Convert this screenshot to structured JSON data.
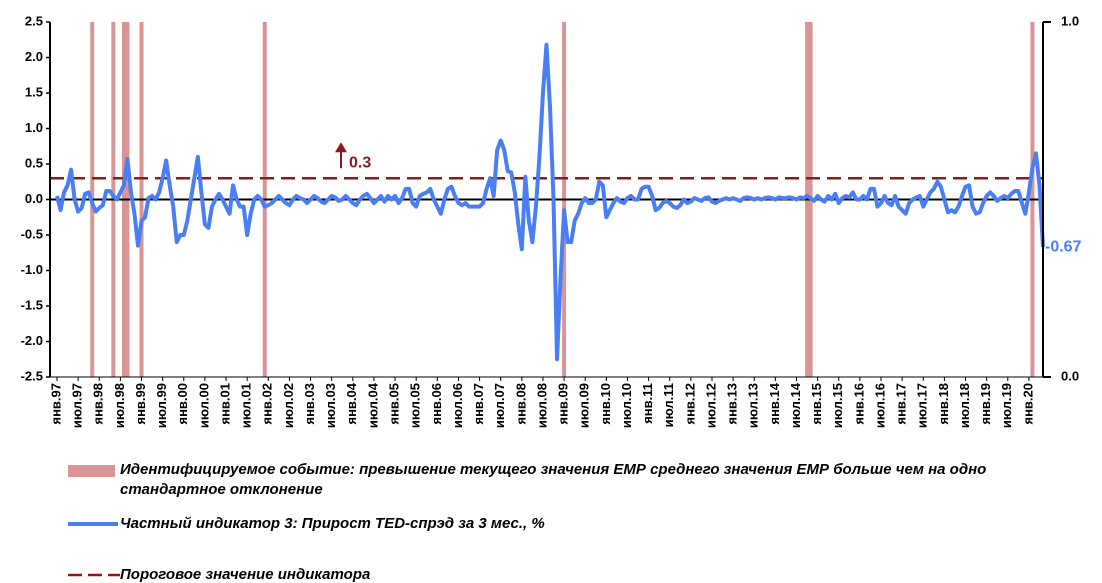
{
  "chart_data": {
    "type": "line",
    "ylim": [
      -2.5,
      2.5
    ],
    "yticks": [
      2.5,
      {
        "value": 2,
        "label": "2.0"
      },
      1.5,
      {
        "value": 1,
        "label": "1.0"
      },
      0.5,
      {
        "value": 0,
        "label": "0.0"
      },
      -0.5,
      {
        "value": -1,
        "label": "-1.0"
      },
      -1.5,
      {
        "value": -2,
        "label": "-2.0"
      },
      -2.5
    ],
    "y2lim": [
      0,
      1
    ],
    "y2ticks": [
      {
        "value": 1,
        "label": "1.0"
      },
      {
        "value": 0,
        "label": "0.0"
      }
    ],
    "categories": [
      "янв.97",
      null,
      null,
      null,
      null,
      null,
      "июл.97",
      null,
      null,
      null,
      null,
      null,
      "янв.98",
      null,
      null,
      null,
      null,
      null,
      "июл.98",
      null,
      null,
      null,
      null,
      null,
      "янв.99",
      null,
      null,
      null,
      null,
      null,
      "июл.99",
      null,
      null,
      null,
      null,
      null,
      "янв.00",
      null,
      null,
      null,
      null,
      null,
      "июл.00",
      null,
      null,
      null,
      null,
      null,
      "янв.01",
      null,
      null,
      null,
      null,
      null,
      "июл.01",
      null,
      null,
      null,
      null,
      null,
      "янв.02",
      null,
      null,
      null,
      null,
      null,
      "июл.02",
      null,
      null,
      null,
      null,
      null,
      "янв.03",
      null,
      null,
      null,
      null,
      null,
      "июл.03",
      null,
      null,
      null,
      null,
      null,
      "янв.04",
      null,
      null,
      null,
      null,
      null,
      "июл.04",
      null,
      null,
      null,
      null,
      null,
      "янв.05",
      null,
      null,
      null,
      null,
      null,
      "июл.05",
      null,
      null,
      null,
      null,
      null,
      "янв.06",
      null,
      null,
      null,
      null,
      null,
      "июл.06",
      null,
      null,
      null,
      null,
      null,
      "янв.07",
      null,
      null,
      null,
      null,
      null,
      "июл.07",
      null,
      null,
      null,
      null,
      null,
      "янв.08",
      null,
      null,
      null,
      null,
      null,
      "июл.08",
      null,
      null,
      null,
      null,
      null,
      "янв.09",
      null,
      null,
      null,
      null,
      null,
      "июл.09",
      null,
      null,
      null,
      null,
      null,
      "янв.10",
      null,
      null,
      null,
      null,
      null,
      "июл.10",
      null,
      null,
      null,
      null,
      null,
      "янв.11",
      null,
      null,
      null,
      null,
      null,
      "июл.11",
      null,
      null,
      null,
      null,
      null,
      "янв.12",
      null,
      null,
      null,
      null,
      null,
      "июл.12",
      null,
      null,
      null,
      null,
      null,
      "янв.13",
      null,
      null,
      null,
      null,
      null,
      "июл.13",
      null,
      null,
      null,
      null,
      null,
      "янв.14",
      null,
      null,
      null,
      null,
      null,
      "июл.14",
      null,
      null,
      null,
      null,
      null,
      "янв.15",
      null,
      null,
      null,
      null,
      null,
      "июл.15",
      null,
      null,
      null,
      null,
      null,
      "янв.16",
      null,
      null,
      null,
      null,
      null,
      "июл.16",
      null,
      null,
      null,
      null,
      null,
      "янв.17",
      null,
      null,
      null,
      null,
      null,
      "июл.17",
      null,
      null,
      null,
      null,
      null,
      "янв.18",
      null,
      null,
      null,
      null,
      null,
      "июл.18",
      null,
      null,
      null,
      null,
      null,
      "янв.19",
      null,
      null,
      null,
      null,
      null,
      "июл.19",
      null,
      null,
      null,
      null,
      null,
      "янв.20",
      null,
      null,
      null,
      null
    ],
    "series": [
      {
        "name": "Идентифицируемое событие: превышение текущего значения ЕМР среднего значения ЕМР больше чем на одно стандартное отклонение",
        "type": "bar",
        "axis": "y2",
        "color": "#d99594",
        "values": [
          0,
          0,
          0,
          0,
          0,
          0,
          0,
          0,
          0,
          0,
          1,
          0,
          0,
          0,
          0,
          0,
          1,
          0,
          0,
          1,
          1,
          0,
          0,
          0,
          1,
          0,
          0,
          0,
          0,
          0,
          0,
          0,
          0,
          0,
          0,
          0,
          0,
          0,
          0,
          0,
          0,
          0,
          0,
          0,
          0,
          0,
          0,
          0,
          0,
          0,
          0,
          0,
          0,
          0,
          0,
          0,
          0,
          0,
          0,
          1,
          0,
          0,
          0,
          0,
          0,
          0,
          0,
          0,
          0,
          0,
          0,
          0,
          0,
          0,
          0,
          0,
          0,
          0,
          0,
          0,
          0,
          0,
          0,
          0,
          0,
          0,
          0,
          0,
          0,
          0,
          0,
          0,
          0,
          0,
          0,
          0,
          0,
          0,
          0,
          0,
          0,
          0,
          0,
          0,
          0,
          0,
          0,
          0,
          0,
          0,
          0,
          0,
          0,
          0,
          0,
          0,
          0,
          0,
          0,
          0,
          0,
          0,
          0,
          0,
          0,
          0,
          0,
          0,
          0,
          0,
          0,
          0,
          0,
          0,
          0,
          0,
          0,
          0,
          0,
          0,
          0,
          0,
          0,
          0,
          1,
          0,
          0,
          0,
          0,
          0,
          0,
          0,
          0,
          0,
          0,
          0,
          0,
          0,
          0,
          0,
          0,
          0,
          0,
          0,
          0,
          0,
          0,
          0,
          0,
          0,
          0,
          0,
          0,
          0,
          0,
          0,
          0,
          0,
          0,
          0,
          0,
          0,
          0,
          0,
          0,
          0,
          0,
          0,
          0,
          0,
          0,
          0,
          0,
          0,
          0,
          0,
          0,
          0,
          0,
          0,
          0,
          0,
          0,
          0,
          0,
          0,
          0,
          0,
          0,
          0,
          0,
          0,
          0,
          1,
          1,
          0,
          0,
          0,
          0,
          0,
          0,
          0,
          0,
          0,
          0,
          0,
          0,
          0,
          0,
          0,
          0,
          0,
          0,
          0,
          0,
          0,
          0,
          0,
          0,
          0,
          0,
          0,
          0,
          0,
          0,
          0,
          0,
          0,
          0,
          0,
          0,
          0,
          0,
          0,
          0,
          0,
          0,
          0,
          0,
          0,
          0,
          0,
          0,
          0,
          0,
          0,
          0,
          0,
          0,
          0,
          0,
          0,
          0,
          0,
          0,
          0,
          0,
          1,
          0,
          0,
          0
        ]
      },
      {
        "name": "Частный индикатор 3: Прирост TED-спрэд за 3 мес., %",
        "type": "line",
        "color": "#4a7ef5",
        "values": [
          0.05,
          -0.15,
          0.1,
          0.2,
          0.42,
          0.0,
          -0.17,
          -0.12,
          0.08,
          0.1,
          -0.05,
          -0.17,
          -0.12,
          -0.08,
          0.12,
          0.12,
          0.05,
          0.0,
          0.1,
          0.2,
          0.57,
          0.1,
          -0.2,
          -0.65,
          -0.3,
          -0.25,
          0.02,
          0.05,
          0.0,
          0.1,
          0.3,
          0.55,
          0.2,
          -0.1,
          -0.6,
          -0.5,
          -0.5,
          -0.3,
          0.0,
          0.3,
          0.6,
          0.1,
          -0.35,
          -0.4,
          -0.1,
          0.0,
          0.08,
          0.0,
          -0.1,
          -0.2,
          0.2,
          0.0,
          -0.1,
          -0.1,
          -0.5,
          -0.2,
          0.0,
          0.05,
          0.0,
          -0.1,
          -0.08,
          -0.05,
          0.0,
          0.05,
          0.0,
          -0.05,
          -0.08,
          0.0,
          0.05,
          0.02,
          0.0,
          -0.05,
          0.0,
          0.05,
          0.02,
          -0.03,
          -0.05,
          0.0,
          0.05,
          0.03,
          -0.02,
          0.0,
          0.05,
          0.0,
          -0.05,
          -0.08,
          0.0,
          0.05,
          0.08,
          0.02,
          -0.05,
          0.0,
          0.05,
          -0.03,
          0.05,
          0.0,
          0.05,
          -0.05,
          0.02,
          0.15,
          0.15,
          -0.05,
          -0.1,
          0.05,
          0.08,
          0.1,
          0.15,
          0.0,
          -0.1,
          -0.2,
          0.0,
          0.15,
          0.18,
          0.05,
          -0.05,
          -0.08,
          -0.05,
          -0.1,
          -0.1,
          -0.1,
          -0.1,
          -0.05,
          0.15,
          0.3,
          0.05,
          0.7,
          0.83,
          0.7,
          0.4,
          0.38,
          0.1,
          -0.35,
          -0.7,
          0.32,
          -0.3,
          -0.6,
          -0.1,
          0.6,
          1.5,
          2.18,
          1.3,
          0.0,
          -2.25,
          -1.1,
          -0.15,
          -0.6,
          -0.6,
          -0.3,
          -0.2,
          -0.05,
          0.02,
          -0.05,
          -0.05,
          0.0,
          0.25,
          0.2,
          -0.25,
          -0.15,
          -0.05,
          0.02,
          -0.03,
          -0.05,
          0.02,
          0.05,
          0.0,
          0.0,
          0.15,
          0.18,
          0.18,
          0.05,
          -0.15,
          -0.12,
          -0.05,
          -0.02,
          -0.05,
          -0.1,
          -0.12,
          -0.08,
          0.0,
          -0.05,
          -0.03,
          0.02,
          0.0,
          -0.02,
          0.02,
          0.03,
          -0.03,
          -0.05,
          -0.02,
          0.0,
          0.02,
          0.0,
          0.02,
          0.0,
          -0.02,
          0.02,
          0.03,
          0.02,
          0.0,
          0.02,
          0.0,
          0.02,
          0.03,
          0.02,
          0.0,
          0.03,
          0.02,
          0.02,
          0.03,
          0.02,
          0.0,
          0.03,
          0.02,
          0.05,
          0.02,
          -0.02,
          0.05,
          0.0,
          -0.03,
          0.05,
          0.0,
          0.08,
          -0.05,
          0.02,
          0.05,
          0.03,
          0.1,
          0.0,
          0.0,
          0.05,
          0.0,
          0.15,
          0.15,
          -0.1,
          -0.05,
          0.05,
          -0.05,
          -0.08,
          0.05,
          -0.1,
          -0.15,
          -0.2,
          -0.05,
          0.0,
          0.03,
          0.05,
          -0.1,
          0.0,
          0.1,
          0.15,
          0.25,
          0.18,
          0.0,
          -0.18,
          -0.15,
          -0.18,
          -0.1,
          0.05,
          0.18,
          0.2,
          -0.1,
          -0.2,
          -0.18,
          -0.05,
          0.05,
          0.1,
          0.05,
          -0.02,
          0.02,
          0.05,
          0.02,
          0.08,
          0.12,
          0.12,
          -0.05,
          -0.2,
          0.1,
          0.45,
          0.65,
          0.2,
          -0.67
        ]
      }
    ],
    "threshold": {
      "name": "Пороговое значение индикатора",
      "value": 0.3,
      "color": "#8b1a1a"
    }
  }
}
